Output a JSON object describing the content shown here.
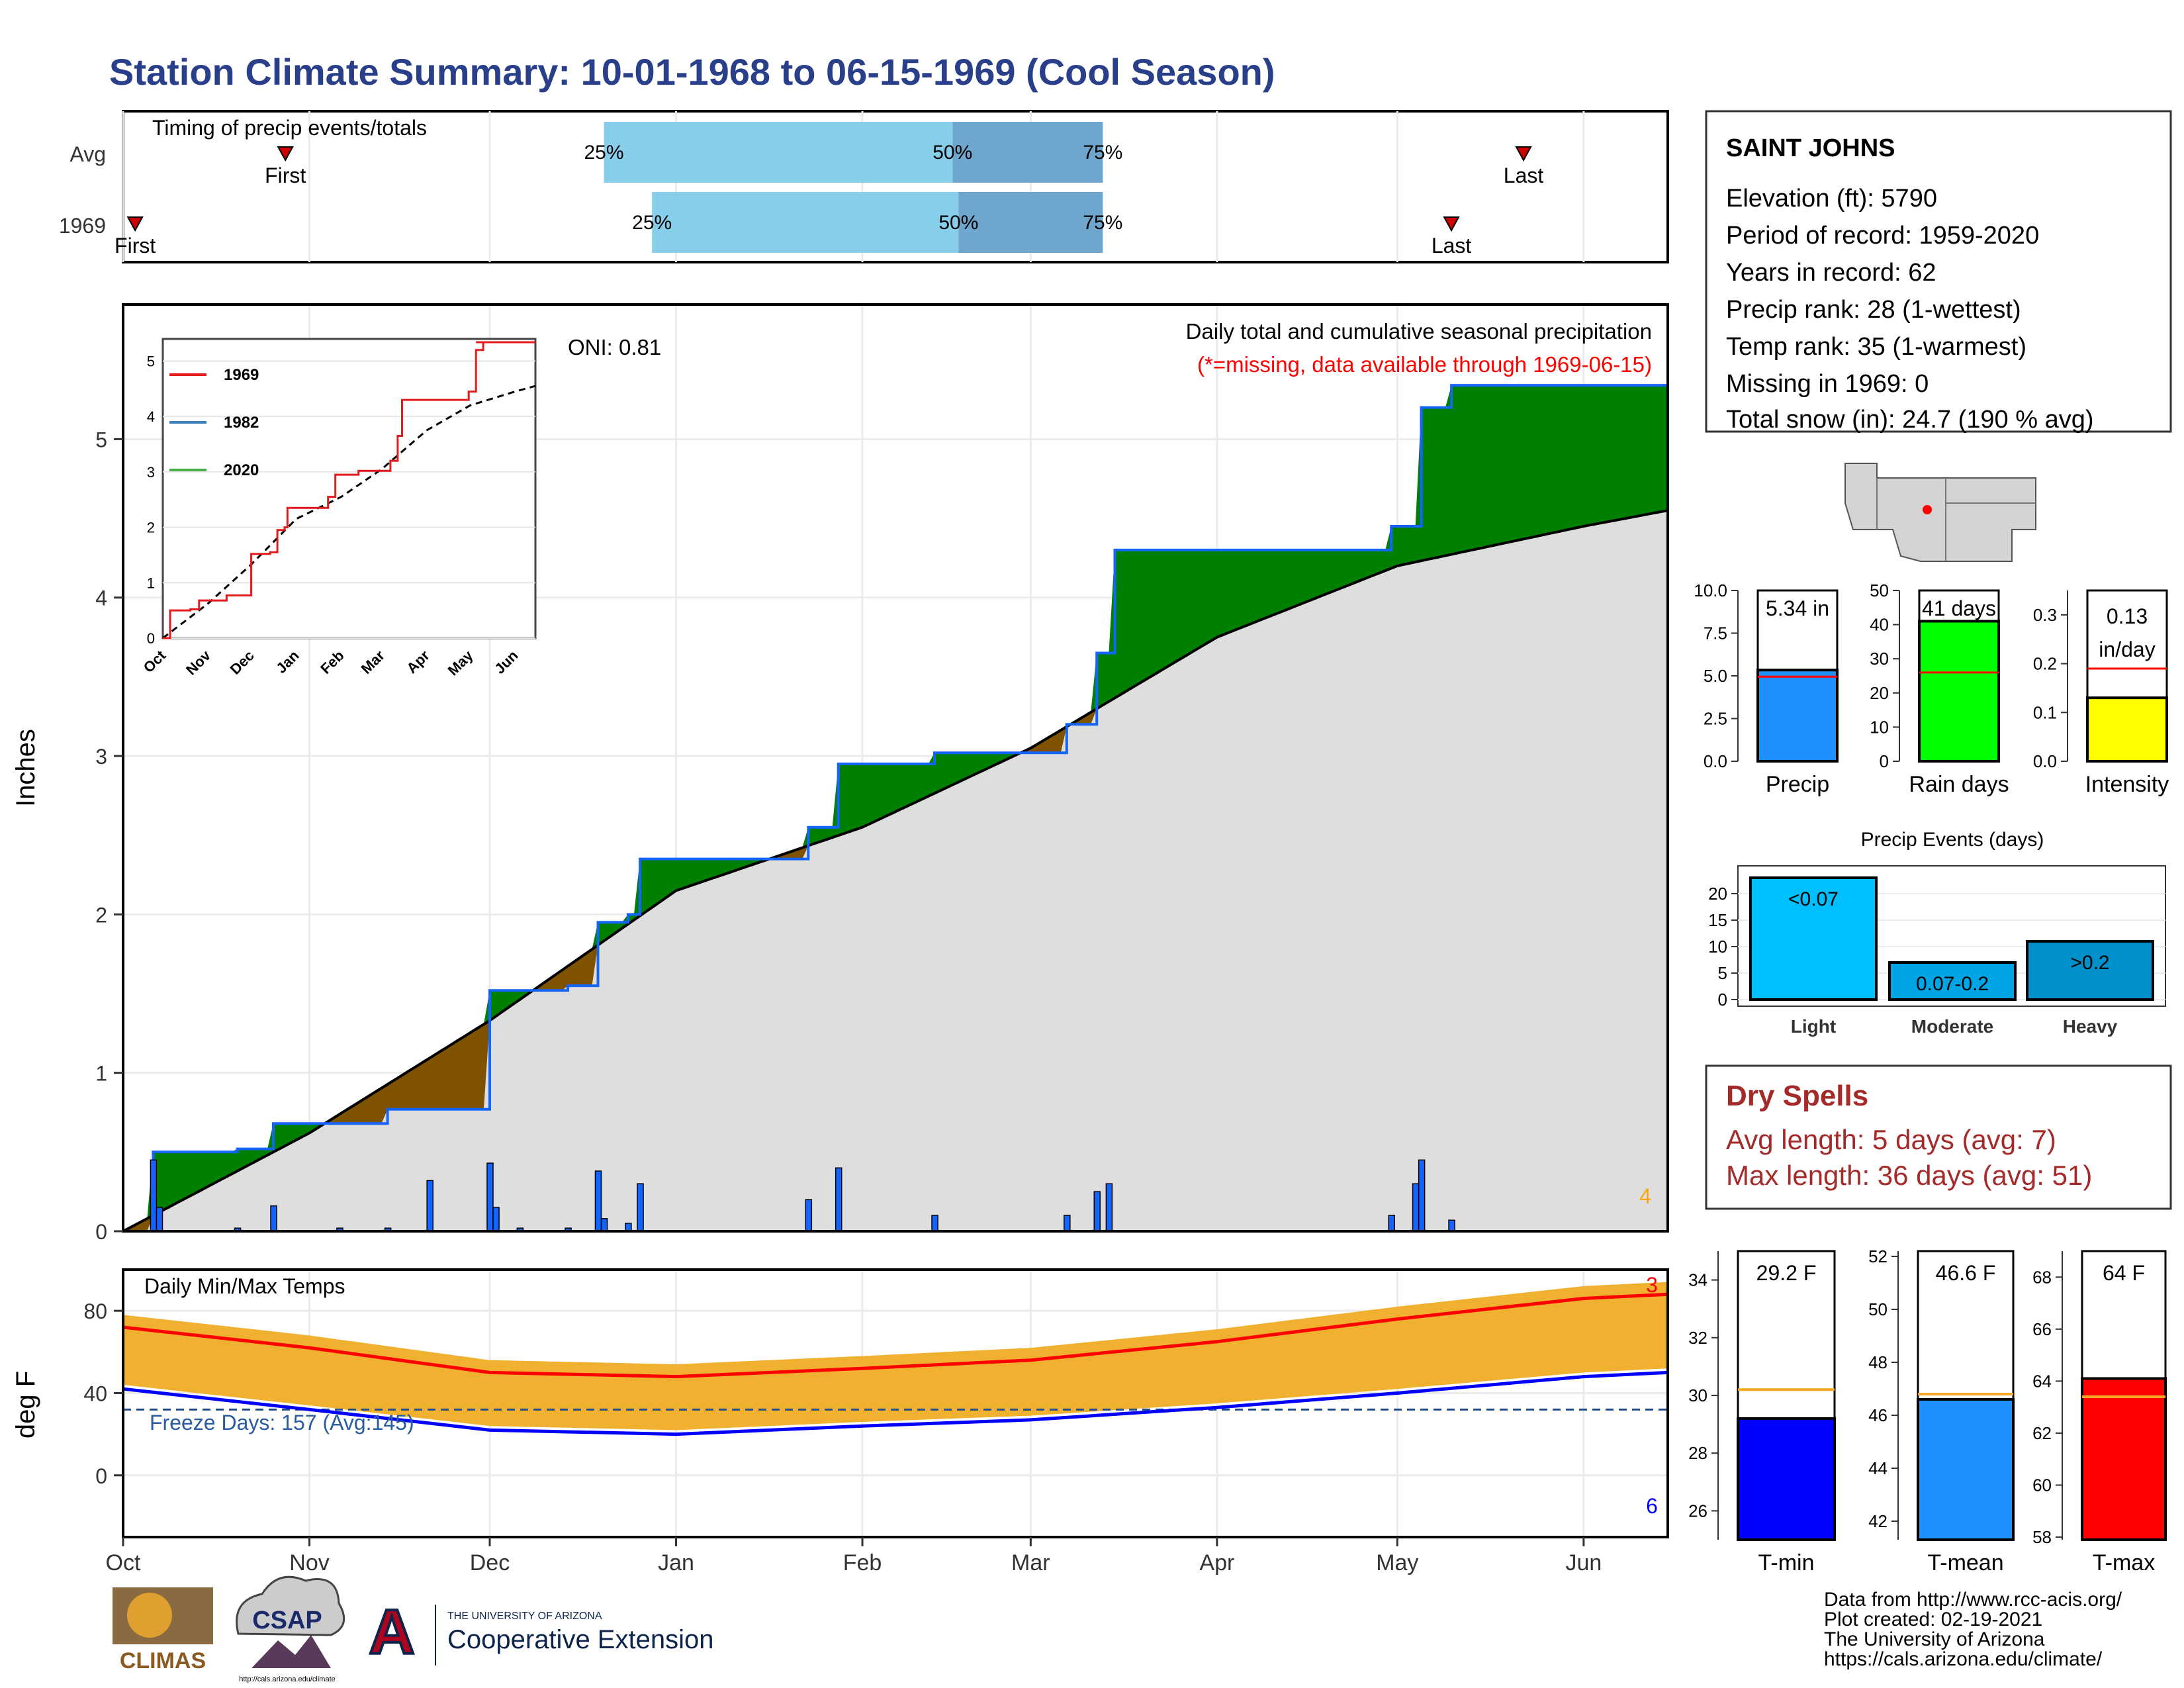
{
  "title": "Station Climate Summary: 10-01-1968 to 06-15-1969 (Cool Season)",
  "colors": {
    "title": "#2a3f8a",
    "precip_blue": "#1464ff",
    "above_green": "#008000",
    "below_brown": "#7f5200",
    "normal_gray": "#dedede",
    "tmin_blue": "#0000ff",
    "tmax_red": "#ff0000",
    "bar_orange": "#f0b030",
    "dry_red": "#a52a2a"
  },
  "timing": {
    "title": "Timing of precip events/totals",
    "rows": [
      {
        "label": "Avg",
        "first_label": "First",
        "last_label": "Last",
        "q25": "25%",
        "q50": "50%",
        "q75": "75%",
        "first_date": "1968-10-28",
        "last_date": "1969-05-22",
        "q25_date": "1968-12-20",
        "q50_date": "1969-02-16",
        "q75_date": "1969-03-13"
      },
      {
        "label": "1969",
        "first_label": "First",
        "last_label": "Last",
        "q25": "25%",
        "q50": "50%",
        "q75": "75%",
        "first_date": "1968-10-03",
        "last_date": "1969-05-10",
        "q25_date": "1968-12-28",
        "q50_date": "1969-02-17",
        "q75_date": "1969-03-13"
      }
    ]
  },
  "precip_panel": {
    "ylabel": "Inches",
    "header": "Daily total and cumulative seasonal precipitation",
    "subheader": "(*=missing, data available through 1969-06-15)",
    "oni": "ONI: 0.81",
    "corner_count": "4",
    "y_ticks": [
      "0",
      "1",
      "2",
      "3",
      "4",
      "5"
    ]
  },
  "inset": {
    "legend": [
      "1969",
      "1982",
      "2020"
    ],
    "legend_colors": [
      "#e41a1c",
      "#377eb8",
      "#4daf4a"
    ],
    "y_ticks": [
      "0",
      "1",
      "2",
      "3",
      "4",
      "5"
    ],
    "x_ticks": [
      "Oct",
      "Nov",
      "Dec",
      "Jan",
      "Feb",
      "Mar",
      "Apr",
      "May",
      "Jun"
    ]
  },
  "temp_panel": {
    "ylabel": "deg F",
    "header": "Daily Min/Max Temps",
    "freeze": "Freeze Days: 157 (Avg:145)",
    "count_max": "3",
    "count_min": "6",
    "y_ticks": [
      "0",
      "40",
      "80"
    ]
  },
  "x_months": [
    "Oct",
    "Nov",
    "Dec",
    "Jan",
    "Feb",
    "Mar",
    "Apr",
    "May",
    "Jun"
  ],
  "station": {
    "name": "SAINT JOHNS",
    "lines": [
      "Elevation (ft): 5790",
      "Period of record: 1959-2020",
      "Years in record: 62",
      "Precip rank: 28 (1-wettest)",
      "Temp rank: 35 (1-warmest)",
      "Missing in 1969: 0",
      "Total snow (in): 24.7 (190 % avg)"
    ]
  },
  "mini_bars": [
    {
      "label": "Precip",
      "value_label": "5.34 in",
      "value": 5.34,
      "avg": 4.95,
      "ticks": [
        "0.0",
        "2.5",
        "5.0",
        "7.5",
        "10.0"
      ],
      "max": 10,
      "color": "#1e90ff"
    },
    {
      "label": "Rain days",
      "value_label": "41 days",
      "value": 41,
      "avg": 26,
      "ticks": [
        "0",
        "10",
        "20",
        "30",
        "40",
        "50"
      ],
      "max": 50,
      "color": "#00ff00"
    },
    {
      "label": "Intensity",
      "value_label": "0.13 in/day",
      "value_label_1": "0.13",
      "value_label_2": "in/day",
      "value": 0.13,
      "avg": 0.19,
      "ticks": [
        "0.0",
        "0.1",
        "0.2",
        "0.3"
      ],
      "max": 0.35,
      "color": "#ffff00"
    }
  ],
  "events": {
    "title": "Precip Events (days)",
    "categories": [
      "Light",
      "Moderate",
      "Heavy"
    ],
    "value_labels": [
      "<0.07",
      "0.07-0.2",
      ">0.2"
    ],
    "values": [
      23,
      7,
      11
    ],
    "ticks": [
      "0",
      "5",
      "10",
      "15",
      "20"
    ],
    "colors": [
      "#00bfff",
      "#00a5e6",
      "#0090cc"
    ]
  },
  "dry_spells": {
    "title": "Dry Spells",
    "avg_line": "Avg length: 5 days (avg: 7)",
    "max_line": "Max length: 36 days (avg: 51)"
  },
  "temp_bars": [
    {
      "label": "T-min",
      "value_label": "29.2 F",
      "value": 29.2,
      "avg": 30.2,
      "ticks": [
        "26",
        "28",
        "30",
        "32",
        "34"
      ],
      "ymin": 25,
      "ymax": 35,
      "color": "#0000ff"
    },
    {
      "label": "T-mean",
      "value_label": "46.6 F",
      "value": 46.6,
      "avg": 46.8,
      "ticks": [
        "42",
        "44",
        "46",
        "48",
        "50",
        "52"
      ],
      "ymin": 41.3,
      "ymax": 52.2,
      "color": "#1e90ff"
    },
    {
      "label": "T-max",
      "value_label": "64 F",
      "value": 64.1,
      "avg": 63.4,
      "ticks": [
        "58",
        "60",
        "62",
        "64",
        "66",
        "68"
      ],
      "ymin": 57.9,
      "ymax": 69,
      "color": "#ff0000"
    }
  ],
  "credits": [
    "Data from http://www.rcc-acis.org/",
    "Plot created: 02-19-2021",
    "The University of Arizona",
    "https://cals.arizona.edu/climate/"
  ],
  "logos": {
    "climas": "CLIMAS",
    "csap": "CSAP",
    "csap_url": "http://cals.arizona.edu/climate",
    "ua_small": "THE UNIVERSITY OF ARIZONA",
    "ua_big": "Cooperative Extension",
    "ua_mark": "A"
  },
  "chart_data": {
    "type": "area",
    "title": "Daily total and cumulative seasonal precipitation",
    "ylabel": "Inches",
    "x_range": [
      "1968-10-01",
      "1969-06-15"
    ],
    "ylim": [
      0,
      5.6
    ],
    "cumulative_1969": [
      {
        "date": "1968-10-01",
        "value": 0.0
      },
      {
        "date": "1968-10-06",
        "value": 0.5
      },
      {
        "date": "1968-10-20",
        "value": 0.52
      },
      {
        "date": "1968-10-26",
        "value": 0.68
      },
      {
        "date": "1968-11-14",
        "value": 0.77
      },
      {
        "date": "1968-12-01",
        "value": 1.1
      },
      {
        "date": "1968-12-01",
        "value": 1.52
      },
      {
        "date": "1968-12-14",
        "value": 1.55
      },
      {
        "date": "1968-12-19",
        "value": 1.95
      },
      {
        "date": "1968-12-24",
        "value": 2.0
      },
      {
        "date": "1968-12-26",
        "value": 2.35
      },
      {
        "date": "1969-01-23",
        "value": 2.55
      },
      {
        "date": "1969-01-28",
        "value": 2.95
      },
      {
        "date": "1969-02-13",
        "value": 3.02
      },
      {
        "date": "1969-03-07",
        "value": 3.2
      },
      {
        "date": "1969-03-12",
        "value": 3.65
      },
      {
        "date": "1969-03-15",
        "value": 4.3
      },
      {
        "date": "1969-04-30",
        "value": 4.45
      },
      {
        "date": "1969-05-05",
        "value": 5.2
      },
      {
        "date": "1969-05-10",
        "value": 5.34
      },
      {
        "date": "1969-06-15",
        "value": 5.34
      }
    ],
    "cumulative_avg": [
      {
        "date": "1968-10-01",
        "value": 0.0
      },
      {
        "date": "1968-11-01",
        "value": 0.62
      },
      {
        "date": "1968-12-01",
        "value": 1.33
      },
      {
        "date": "1969-01-01",
        "value": 2.15
      },
      {
        "date": "1969-02-01",
        "value": 2.55
      },
      {
        "date": "1969-03-01",
        "value": 3.05
      },
      {
        "date": "1969-04-01",
        "value": 3.75
      },
      {
        "date": "1969-05-01",
        "value": 4.2
      },
      {
        "date": "1969-06-01",
        "value": 4.45
      },
      {
        "date": "1969-06-15",
        "value": 4.55
      }
    ],
    "daily_precip": [
      {
        "date": "1968-10-06",
        "value": 0.45
      },
      {
        "date": "1968-10-07",
        "value": 0.15
      },
      {
        "date": "1968-10-20",
        "value": 0.02
      },
      {
        "date": "1968-10-26",
        "value": 0.16
      },
      {
        "date": "1968-11-06",
        "value": 0.02
      },
      {
        "date": "1968-11-14",
        "value": 0.02
      },
      {
        "date": "1968-11-21",
        "value": 0.32
      },
      {
        "date": "1968-12-01",
        "value": 0.43
      },
      {
        "date": "1968-12-02",
        "value": 0.15
      },
      {
        "date": "1968-12-06",
        "value": 0.02
      },
      {
        "date": "1968-12-14",
        "value": 0.02
      },
      {
        "date": "1968-12-19",
        "value": 0.38
      },
      {
        "date": "1968-12-20",
        "value": 0.08
      },
      {
        "date": "1968-12-24",
        "value": 0.05
      },
      {
        "date": "1968-12-26",
        "value": 0.3
      },
      {
        "date": "1969-01-23",
        "value": 0.2
      },
      {
        "date": "1969-01-28",
        "value": 0.4
      },
      {
        "date": "1969-02-13",
        "value": 0.1
      },
      {
        "date": "1969-03-07",
        "value": 0.1
      },
      {
        "date": "1969-03-12",
        "value": 0.25
      },
      {
        "date": "1969-03-14",
        "value": 0.3
      },
      {
        "date": "1969-04-30",
        "value": 0.1
      },
      {
        "date": "1969-05-04",
        "value": 0.3
      },
      {
        "date": "1969-05-05",
        "value": 0.45
      },
      {
        "date": "1969-05-10",
        "value": 0.07
      }
    ],
    "temperature": {
      "ylabel": "deg F",
      "ylim": [
        -30,
        100
      ],
      "avg_max": [
        {
          "date": "1968-10-01",
          "value": 72
        },
        {
          "date": "1968-11-01",
          "value": 62
        },
        {
          "date": "1968-12-01",
          "value": 50
        },
        {
          "date": "1969-01-01",
          "value": 48
        },
        {
          "date": "1969-02-01",
          "value": 52
        },
        {
          "date": "1969-03-01",
          "value": 56
        },
        {
          "date": "1969-04-01",
          "value": 65
        },
        {
          "date": "1969-05-01",
          "value": 76
        },
        {
          "date": "1969-06-01",
          "value": 86
        },
        {
          "date": "1969-06-15",
          "value": 88
        }
      ],
      "avg_min": [
        {
          "date": "1968-10-01",
          "value": 42
        },
        {
          "date": "1968-11-01",
          "value": 32
        },
        {
          "date": "1968-12-01",
          "value": 22
        },
        {
          "date": "1969-01-01",
          "value": 20
        },
        {
          "date": "1969-02-01",
          "value": 24
        },
        {
          "date": "1969-03-01",
          "value": 27
        },
        {
          "date": "1969-04-01",
          "value": 33
        },
        {
          "date": "1969-05-01",
          "value": 40
        },
        {
          "date": "1969-06-01",
          "value": 48
        },
        {
          "date": "1969-06-15",
          "value": 50
        }
      ],
      "freeze_line": 32
    }
  }
}
